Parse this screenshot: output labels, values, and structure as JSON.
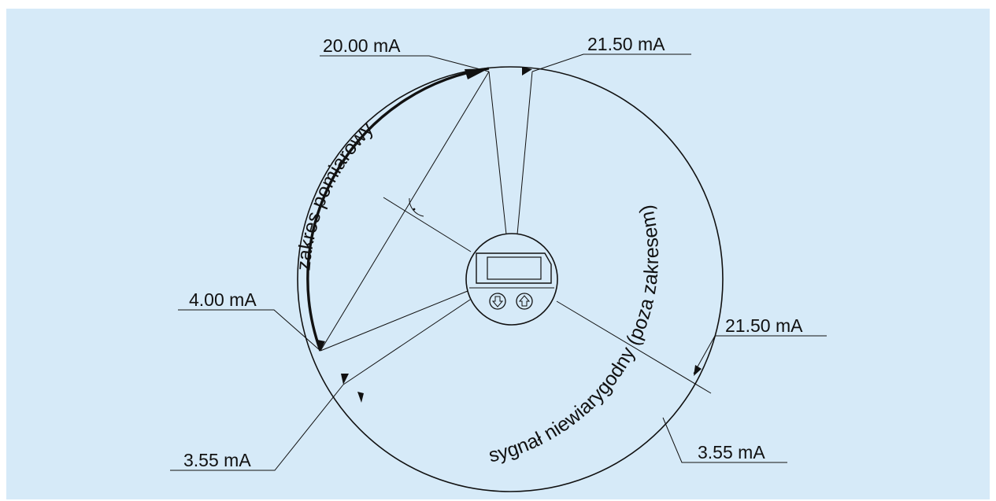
{
  "labels": {
    "top_left": "20.00 mA",
    "top_right": "21.50 mA",
    "left_upper": "4.00 mA",
    "left_lower": "3.55 mA",
    "right_upper": "21.50 mA",
    "right_lower": "3.55 mA"
  },
  "arcs": {
    "measuring_range": "zakres pomiarowy",
    "invalid_signal": "sygnał niewiarygodny (poza zakresem)"
  },
  "device": {
    "button_down_icon": "down-arrow-icon",
    "button_up_icon": "up-arrow-icon"
  },
  "colors": {
    "background": "#d6eaf8",
    "line": "#111111"
  }
}
